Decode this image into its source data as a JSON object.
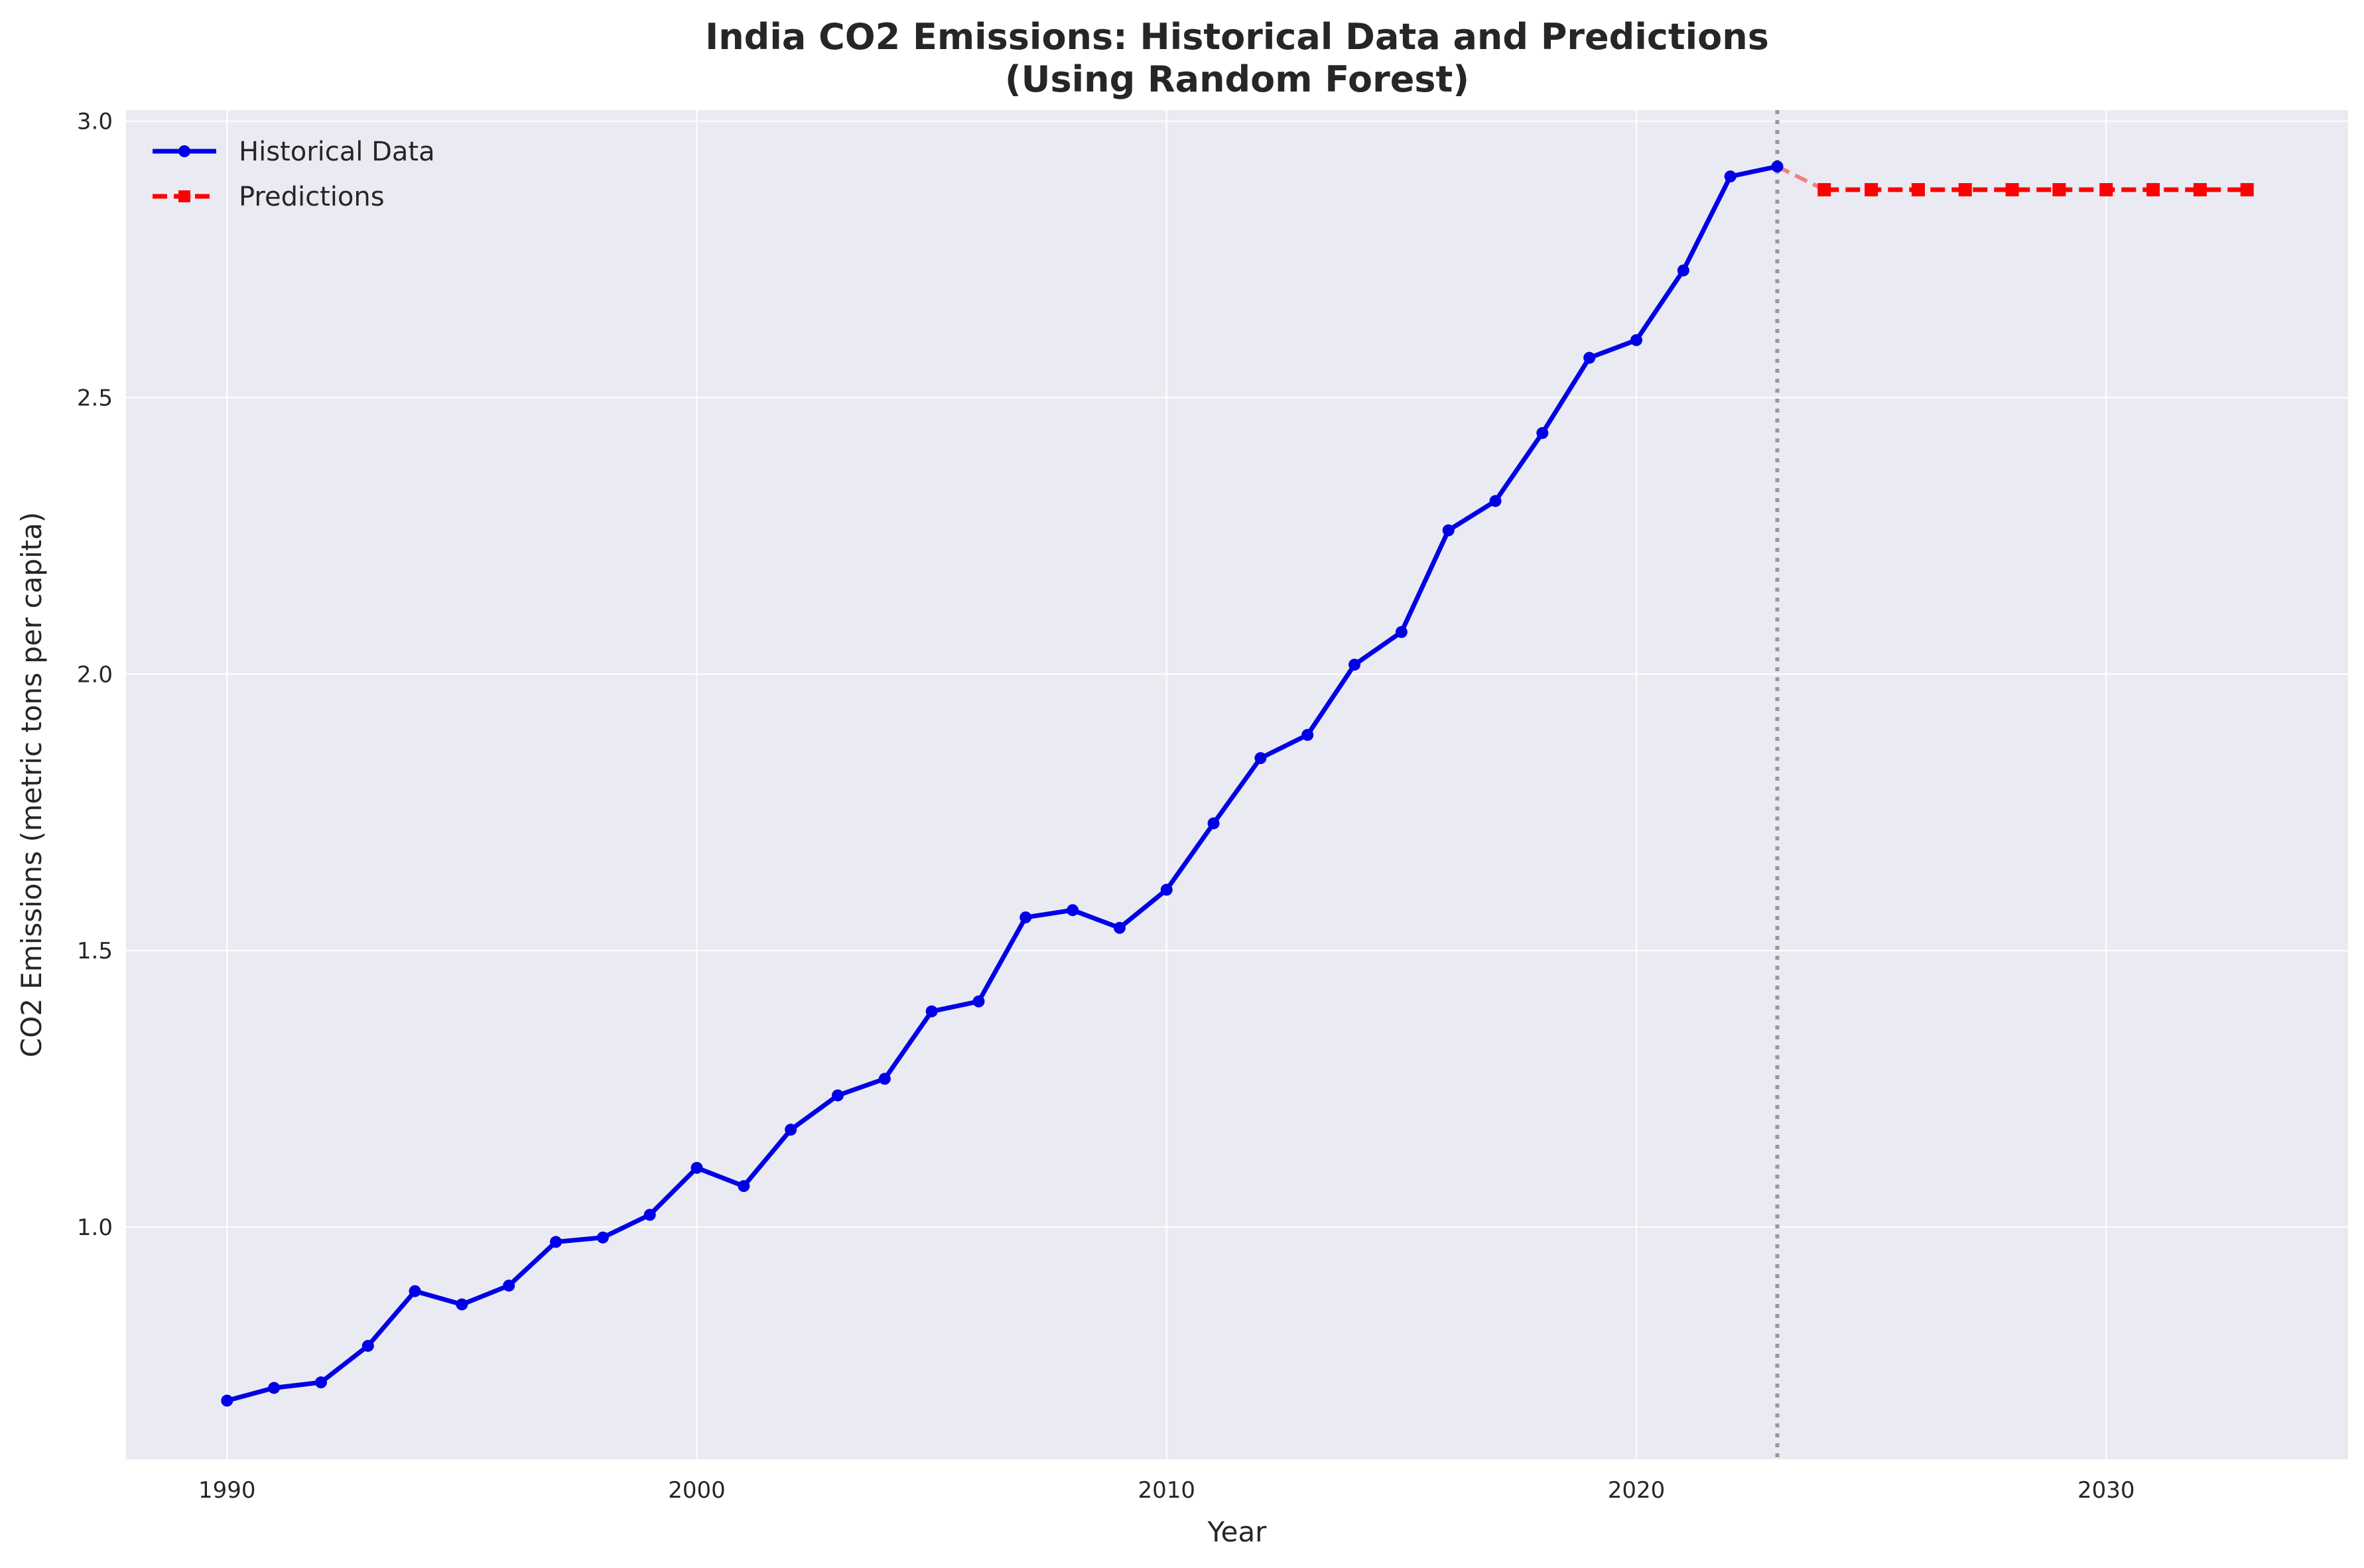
{
  "chart_data": {
    "type": "line",
    "title": "India CO2 Emissions: Historical Data and Predictions",
    "subtitle": "(Using Random Forest)",
    "xlabel": "Year",
    "ylabel": "CO2 Emissions (metric tons per capita)",
    "xlim": [
      1987.85,
      2035.15
    ],
    "ylim": [
      0.58,
      3.02
    ],
    "xticks": [
      1990,
      2000,
      2010,
      2020,
      2030
    ],
    "yticks": [
      1.0,
      1.5,
      2.0,
      2.5,
      3.0
    ],
    "grid": true,
    "legend_position": "top-left",
    "split_year": 2023,
    "colors": {
      "historical": "#0000e6",
      "prediction": "#ff0000",
      "connector": "#f08080",
      "split_line": "#999999",
      "plot_background": "#eaeaf2",
      "grid": "#ffffff"
    },
    "series": [
      {
        "name": "Historical Data",
        "style": "solid-circle",
        "x": [
          1990,
          1991,
          1992,
          1993,
          1994,
          1995,
          1996,
          1997,
          1998,
          1999,
          2000,
          2001,
          2002,
          2003,
          2004,
          2005,
          2006,
          2007,
          2008,
          2009,
          2010,
          2011,
          2012,
          2013,
          2014,
          2015,
          2016,
          2017,
          2018,
          2019,
          2020,
          2021,
          2022,
          2023
        ],
        "values": [
          0.686,
          0.709,
          0.719,
          0.785,
          0.884,
          0.86,
          0.894,
          0.973,
          0.981,
          1.022,
          1.107,
          1.074,
          1.176,
          1.238,
          1.268,
          1.39,
          1.408,
          1.56,
          1.573,
          1.541,
          1.61,
          1.73,
          1.848,
          1.89,
          2.017,
          2.076,
          2.26,
          2.313,
          2.436,
          2.572,
          2.604,
          2.73,
          2.9,
          2.918
        ]
      },
      {
        "name": "Predictions",
        "style": "dashed-square",
        "x": [
          2024,
          2025,
          2026,
          2027,
          2028,
          2029,
          2030,
          2031,
          2032,
          2033
        ],
        "values": [
          2.876,
          2.876,
          2.876,
          2.876,
          2.876,
          2.876,
          2.876,
          2.876,
          2.876,
          2.876
        ]
      }
    ]
  }
}
